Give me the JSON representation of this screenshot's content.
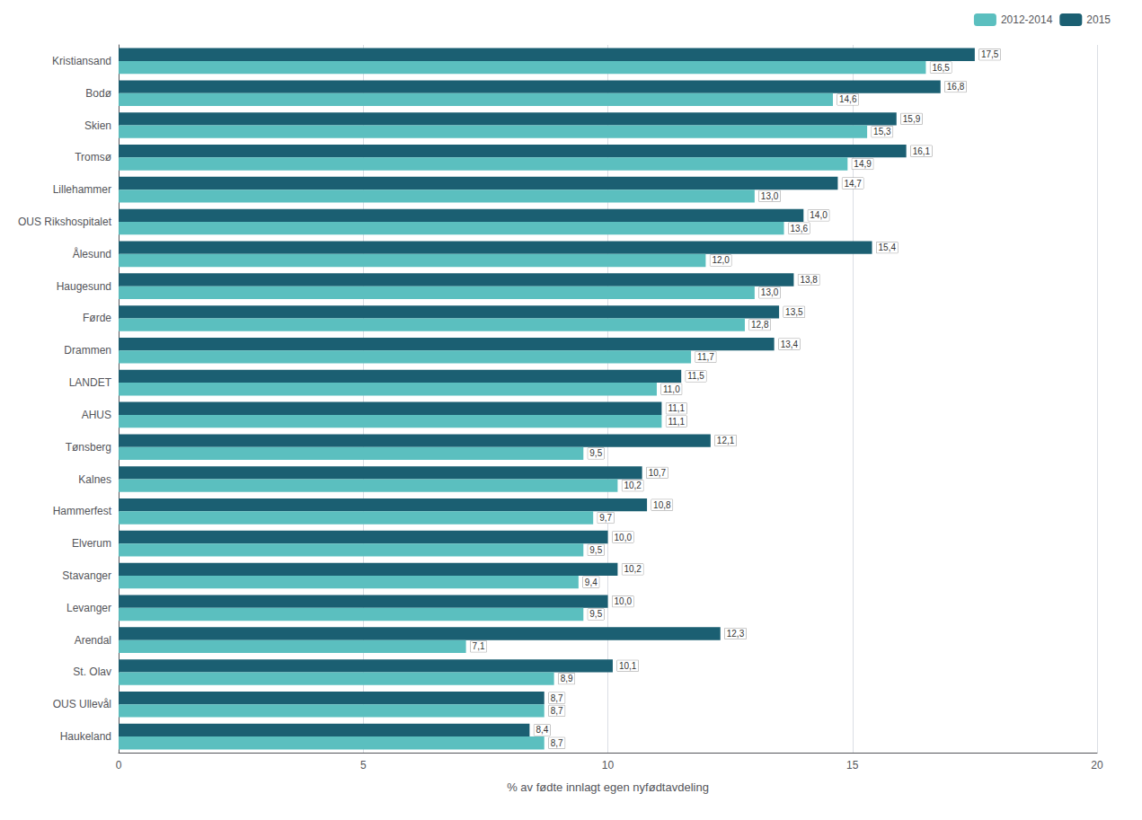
{
  "chart_data": {
    "type": "bar",
    "orientation": "horizontal",
    "categories": [
      "Kristiansand",
      "Bodø",
      "Skien",
      "Tromsø",
      "Lillehammer",
      "OUS Rikshospitalet",
      "Ålesund",
      "Haugesund",
      "Førde",
      "Drammen",
      "LANDET",
      "AHUS",
      "Tønsberg",
      "Kalnes",
      "Hammerfest",
      "Elverum",
      "Stavanger",
      "Levanger",
      "Arendal",
      "St. Olav",
      "OUS Ullevål",
      "Haukeland"
    ],
    "series": [
      {
        "name": "2012-2014",
        "color": "#5BBFBF",
        "values": [
          16.5,
          14.6,
          15.3,
          14.9,
          13.0,
          13.6,
          12.0,
          13.0,
          12.8,
          11.7,
          11.0,
          11.1,
          9.5,
          10.2,
          9.7,
          9.5,
          9.4,
          9.5,
          7.1,
          8.9,
          8.7,
          8.7
        ],
        "value_labels": [
          "16,5",
          "14,6",
          "15,3",
          "14,9",
          "13,0",
          "13,6",
          "12,0",
          "13,0",
          "12,8",
          "11,7",
          "11,0",
          "11,1",
          "9,5",
          "10,2",
          "9,7",
          "9,5",
          "9,4",
          "9,5",
          "7,1",
          "8,9",
          "8,7",
          "8,7"
        ]
      },
      {
        "name": "2015",
        "color": "#1B5F72",
        "values": [
          17.5,
          16.8,
          15.9,
          16.1,
          14.7,
          14.0,
          15.4,
          13.8,
          13.5,
          13.4,
          11.5,
          11.1,
          12.1,
          10.7,
          10.8,
          10.0,
          10.2,
          10.0,
          12.3,
          10.1,
          8.7,
          8.4
        ],
        "value_labels": [
          "17,5",
          "16,8",
          "15,9",
          "16,1",
          "14,7",
          "14,0",
          "15,4",
          "13,8",
          "13,5",
          "13,4",
          "11,5",
          "11,1",
          "12,1",
          "10,7",
          "10,8",
          "10,0",
          "10,2",
          "10,0",
          "12,3",
          "10,1",
          "8,7",
          "8,4"
        ]
      }
    ],
    "xlabel": "% av fødte innlagt egen nyfødtavdeling",
    "xlim": [
      0,
      20
    ],
    "xticks": [
      0,
      5,
      10,
      15,
      20
    ],
    "grid": true,
    "legend": "upper right",
    "data_labels": true
  }
}
